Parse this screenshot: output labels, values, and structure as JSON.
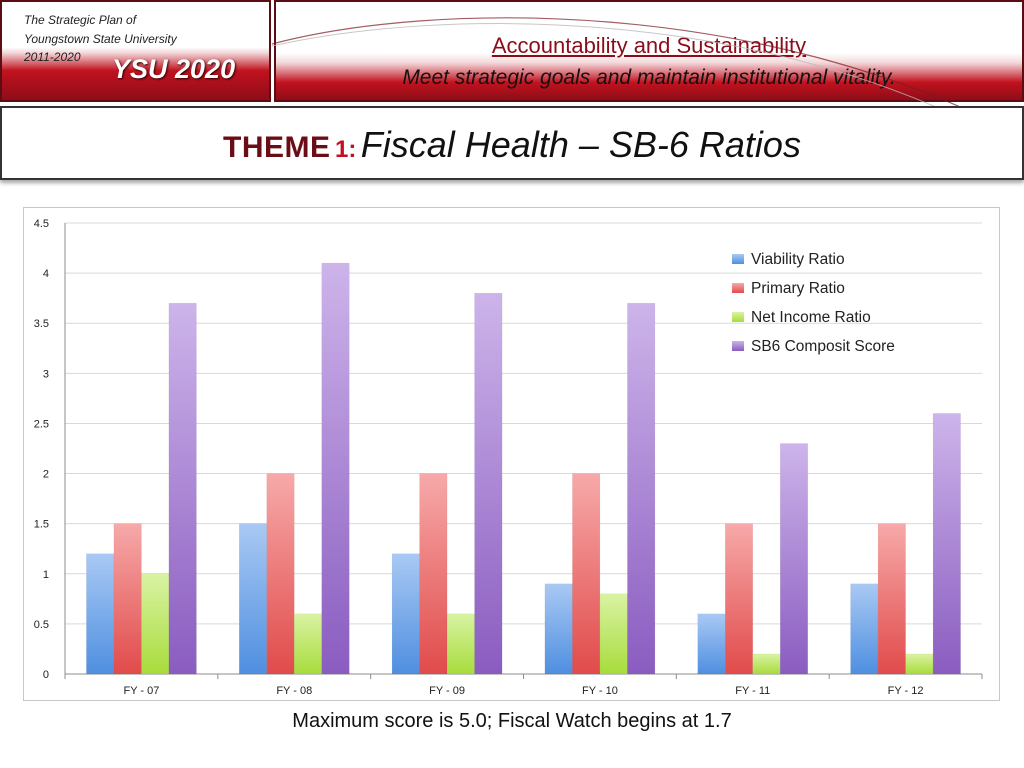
{
  "header": {
    "plan_line1": "The Strategic Plan of",
    "plan_line2": "Youngstown State University",
    "plan_line3": "2011-2020",
    "brand": "YSU 2020",
    "motto_title": "Accountability and Sustainability",
    "motto_subtitle": "Meet strategic goals and maintain institutional vitality."
  },
  "theme": {
    "word": "THEME",
    "number": "1:",
    "title": "Fiscal Health – SB-6 Ratios"
  },
  "caption": "Maximum score is 5.0; Fiscal Watch begins at 1.7",
  "colors": {
    "brand_red": "#c1121f",
    "brand_dark": "#8e0d17"
  },
  "chart_data": {
    "type": "bar",
    "title": "",
    "xlabel": "",
    "ylabel": "",
    "categories": [
      "FY - 07",
      "FY - 08",
      "FY - 09",
      "FY - 10",
      "FY - 11",
      "FY - 12"
    ],
    "ylim": [
      0,
      4.5
    ],
    "yticks": [
      0,
      0.5,
      1,
      1.5,
      2,
      2.5,
      3,
      3.5,
      4,
      4.5
    ],
    "ytick_labels": [
      "0",
      "0.5",
      "1",
      "1.5",
      "2",
      "2.5",
      "3",
      "3.5",
      "4",
      "4.5"
    ],
    "grid": true,
    "legend_position": "top-right",
    "series": [
      {
        "name": "Viability Ratio",
        "color": "#4f8fe0",
        "light": "#a9c9f4",
        "values": [
          1.2,
          1.5,
          1.2,
          0.9,
          0.6,
          0.9
        ]
      },
      {
        "name": "Primary Ratio",
        "color": "#e14b4b",
        "light": "#f7a9a9",
        "values": [
          1.5,
          2.0,
          2.0,
          2.0,
          1.5,
          1.5
        ]
      },
      {
        "name": "Net Income Ratio",
        "color": "#a8dc3c",
        "light": "#d9f3a3",
        "values": [
          1.0,
          0.6,
          0.6,
          0.8,
          0.2,
          0.2
        ]
      },
      {
        "name": "SB6 Composit Score",
        "color": "#8a5cc0",
        "light": "#cdb4ea",
        "values": [
          3.7,
          4.1,
          3.8,
          3.7,
          2.3,
          2.6
        ]
      }
    ]
  }
}
